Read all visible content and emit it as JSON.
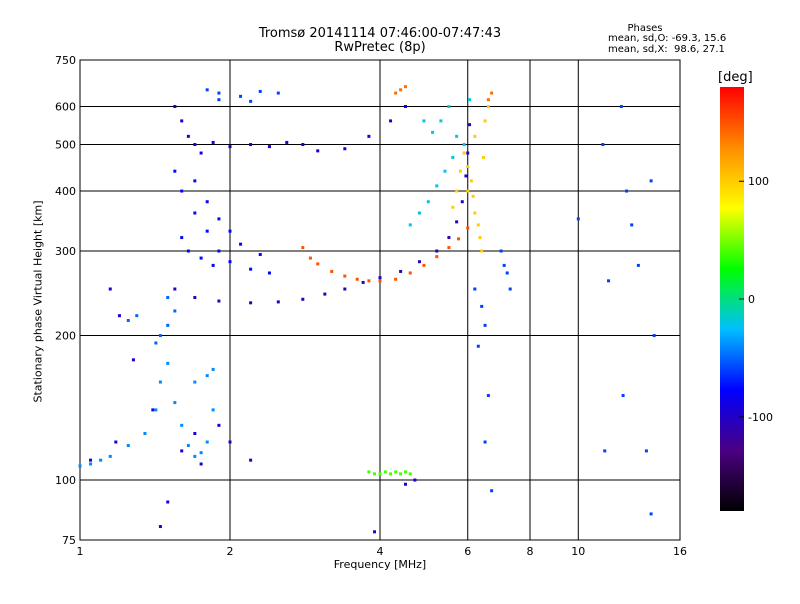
{
  "chart_data": {
    "type": "scatter",
    "title": "Tromsø 20141114 07:46:00-07:47:43",
    "subtitle": "RwPretec (8p)",
    "xlabel": "Frequency [MHz]",
    "ylabel": "Stationary phase Virtual Height [km]",
    "x_scale": "log",
    "y_scale": "log",
    "xlim": [
      1,
      16
    ],
    "ylim": [
      75,
      750
    ],
    "x_ticks": [
      1,
      2,
      4,
      6,
      8,
      10,
      16
    ],
    "y_ticks": [
      75,
      100,
      200,
      300,
      400,
      500,
      600,
      750
    ],
    "grid": true,
    "phase_stats": {
      "heading": "Phases",
      "line_o": "mean, sd,O: -69.3, 15.6",
      "line_x": "mean, sd,X:  98.6, 27.1"
    },
    "colorbar": {
      "label": "[deg]",
      "ticks": [
        100,
        0,
        -100
      ],
      "range": [
        -180,
        180
      ],
      "colormap": "rainbow",
      "colors": [
        "#000000",
        "#4b0082",
        "#0000ff",
        "#00bfff",
        "#00ff00",
        "#ffff00",
        "#ff8c00",
        "#ff0000"
      ]
    },
    "series": [
      {
        "points": [
          [
            1.55,
            600
          ],
          [
            1.6,
            560
          ],
          [
            1.65,
            520
          ],
          [
            1.7,
            500
          ],
          [
            1.75,
            480
          ],
          [
            1.85,
            505
          ],
          [
            2.0,
            495
          ],
          [
            2.2,
            500
          ],
          [
            2.4,
            495
          ],
          [
            2.6,
            505
          ],
          [
            2.8,
            500
          ],
          [
            3.0,
            485
          ],
          [
            3.4,
            490
          ],
          [
            3.8,
            520
          ],
          [
            4.2,
            560
          ],
          [
            4.5,
            600
          ]
        ],
        "phase": -90
      },
      {
        "points": [
          [
            1.55,
            440
          ],
          [
            1.6,
            400
          ],
          [
            1.7,
            360
          ],
          [
            1.8,
            330
          ],
          [
            1.9,
            300
          ],
          [
            2.0,
            285
          ],
          [
            2.2,
            275
          ],
          [
            2.4,
            270
          ],
          [
            1.6,
            320
          ],
          [
            1.65,
            300
          ],
          [
            1.75,
            290
          ],
          [
            1.85,
            280
          ],
          [
            1.7,
            420
          ],
          [
            1.8,
            380
          ],
          [
            1.9,
            350
          ],
          [
            2.0,
            330
          ],
          [
            2.1,
            310
          ],
          [
            2.3,
            295
          ]
        ],
        "phase": -75
      },
      {
        "points": [
          [
            1.55,
            250
          ],
          [
            1.7,
            240
          ],
          [
            1.9,
            236
          ],
          [
            2.2,
            234
          ],
          [
            2.5,
            235
          ],
          [
            2.8,
            238
          ],
          [
            3.1,
            244
          ],
          [
            3.4,
            250
          ],
          [
            3.7,
            258
          ],
          [
            4.0,
            264
          ],
          [
            4.4,
            272
          ],
          [
            4.8,
            285
          ],
          [
            5.2,
            300
          ],
          [
            5.5,
            320
          ],
          [
            5.7,
            345
          ],
          [
            5.85,
            380
          ],
          [
            5.95,
            430
          ],
          [
            6.0,
            480
          ],
          [
            6.05,
            550
          ]
        ],
        "phase": -105
      },
      {
        "points": [
          [
            1.5,
            240
          ],
          [
            1.55,
            225
          ],
          [
            1.5,
            210
          ],
          [
            1.45,
            200
          ],
          [
            1.42,
            193
          ],
          [
            1.3,
            220
          ],
          [
            1.25,
            215
          ]
        ],
        "phase": -50
      },
      {
        "points": [
          [
            2.8,
            305
          ],
          [
            2.9,
            290
          ],
          [
            3.0,
            282
          ],
          [
            3.2,
            272
          ],
          [
            3.4,
            266
          ],
          [
            3.6,
            262
          ],
          [
            3.8,
            260
          ],
          [
            4.0,
            260
          ],
          [
            4.3,
            262
          ],
          [
            4.6,
            270
          ],
          [
            4.9,
            280
          ],
          [
            5.2,
            292
          ],
          [
            5.5,
            305
          ],
          [
            5.75,
            318
          ],
          [
            6.0,
            335
          ]
        ],
        "phase": 150
      },
      {
        "points": [
          [
            5.9,
            480
          ],
          [
            6.0,
            450
          ],
          [
            6.1,
            420
          ],
          [
            6.15,
            390
          ],
          [
            6.2,
            360
          ],
          [
            6.3,
            340
          ],
          [
            6.35,
            320
          ],
          [
            6.4,
            300
          ],
          [
            6.45,
            470
          ],
          [
            6.5,
            560
          ],
          [
            6.6,
            600
          ],
          [
            6.2,
            520
          ],
          [
            6.0,
            400
          ],
          [
            5.8,
            440
          ],
          [
            5.7,
            400
          ],
          [
            5.6,
            370
          ]
        ],
        "phase": 100
      },
      {
        "points": [
          [
            4.9,
            560
          ],
          [
            5.1,
            530
          ],
          [
            5.3,
            560
          ],
          [
            5.5,
            600
          ],
          [
            5.7,
            520
          ],
          [
            5.9,
            500
          ],
          [
            6.05,
            620
          ],
          [
            5.6,
            470
          ],
          [
            5.4,
            440
          ],
          [
            5.2,
            410
          ],
          [
            5.0,
            380
          ],
          [
            4.8,
            360
          ],
          [
            4.6,
            340
          ]
        ],
        "phase": -20
      },
      {
        "points": [
          [
            1.0,
            107
          ],
          [
            1.05,
            108
          ],
          [
            1.1,
            110
          ],
          [
            1.15,
            112
          ],
          [
            1.25,
            118
          ],
          [
            1.35,
            125
          ],
          [
            1.42,
            140
          ],
          [
            1.45,
            160
          ],
          [
            1.5,
            175
          ],
          [
            1.55,
            145
          ],
          [
            1.6,
            130
          ],
          [
            1.65,
            118
          ],
          [
            1.7,
            112
          ],
          [
            1.75,
            114
          ],
          [
            1.8,
            120
          ],
          [
            1.85,
            140
          ],
          [
            1.8,
            165
          ],
          [
            1.85,
            170
          ],
          [
            1.7,
            160
          ]
        ],
        "phase": -40
      },
      {
        "points": [
          [
            4.0,
            103
          ],
          [
            4.1,
            104
          ],
          [
            4.2,
            103
          ],
          [
            4.3,
            104
          ],
          [
            4.4,
            103
          ],
          [
            4.5,
            104
          ],
          [
            4.6,
            103
          ],
          [
            3.8,
            104
          ],
          [
            3.9,
            103
          ]
        ],
        "phase": 40
      },
      {
        "points": [
          [
            6.2,
            250
          ],
          [
            6.4,
            230
          ],
          [
            6.5,
            210
          ],
          [
            6.3,
            190
          ],
          [
            6.6,
            150
          ],
          [
            6.5,
            120
          ],
          [
            6.7,
            95
          ],
          [
            7.2,
            270
          ],
          [
            7.3,
            250
          ],
          [
            7.0,
            300
          ],
          [
            7.1,
            280
          ],
          [
            10.0,
            350
          ],
          [
            11.2,
            500
          ],
          [
            11.5,
            260
          ],
          [
            12.2,
            600
          ],
          [
            12.5,
            400
          ],
          [
            12.8,
            340
          ],
          [
            13.2,
            280
          ],
          [
            14.0,
            420
          ],
          [
            14.2,
            200
          ],
          [
            12.3,
            150
          ],
          [
            11.3,
            115
          ],
          [
            13.7,
            115
          ],
          [
            14.0,
            85
          ]
        ],
        "phase": -60
      },
      {
        "points": [
          [
            1.15,
            250
          ],
          [
            1.2,
            220
          ],
          [
            1.28,
            178
          ],
          [
            1.18,
            120
          ],
          [
            1.05,
            110
          ],
          [
            1.4,
            140
          ],
          [
            1.5,
            90
          ],
          [
            1.45,
            80
          ],
          [
            1.6,
            115
          ],
          [
            1.7,
            125
          ],
          [
            1.9,
            130
          ],
          [
            2.0,
            120
          ],
          [
            2.2,
            110
          ],
          [
            1.75,
            108
          ],
          [
            4.7,
            100
          ],
          [
            4.5,
            98
          ],
          [
            3.9,
            78
          ]
        ],
        "phase": -95
      },
      {
        "points": [
          [
            1.8,
            650
          ],
          [
            1.9,
            640
          ],
          [
            2.1,
            630
          ],
          [
            2.3,
            645
          ],
          [
            2.5,
            640
          ],
          [
            1.9,
            620
          ],
          [
            2.2,
            615
          ]
        ],
        "phase": -60
      },
      {
        "points": [
          [
            4.4,
            650
          ],
          [
            4.5,
            660
          ],
          [
            4.3,
            640
          ],
          [
            6.7,
            640
          ],
          [
            6.6,
            620
          ]
        ],
        "phase": 140
      }
    ]
  }
}
